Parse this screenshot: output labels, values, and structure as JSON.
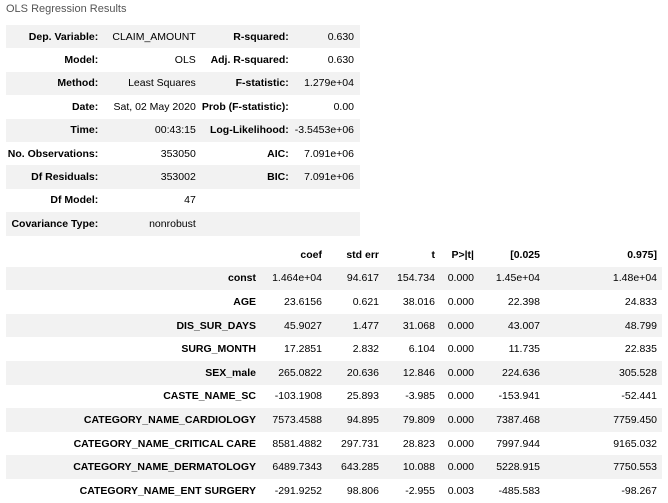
{
  "caption": "OLS Regression Results",
  "summary": {
    "rows": [
      {
        "l1": "Dep. Variable:",
        "v1": "CLAIM_AMOUNT",
        "l2": "R-squared:",
        "v2": "0.630"
      },
      {
        "l1": "Model:",
        "v1": "OLS",
        "l2": "Adj. R-squared:",
        "v2": "0.630"
      },
      {
        "l1": "Method:",
        "v1": "Least Squares",
        "l2": "F-statistic:",
        "v2": "1.279e+04"
      },
      {
        "l1": "Date:",
        "v1": "Sat, 02 May 2020",
        "l2": "Prob (F-statistic):",
        "v2": "0.00"
      },
      {
        "l1": "Time:",
        "v1": "00:43:15",
        "l2": "Log-Likelihood:",
        "v2": "-3.5453e+06"
      },
      {
        "l1": "No. Observations:",
        "v1": "353050",
        "l2": "AIC:",
        "v2": "7.091e+06"
      },
      {
        "l1": "Df Residuals:",
        "v1": "353002",
        "l2": "BIC:",
        "v2": "7.091e+06"
      },
      {
        "l1": "Df Model:",
        "v1": "47",
        "l2": "",
        "v2": ""
      },
      {
        "l1": "Covariance Type:",
        "v1": "nonrobust",
        "l2": "",
        "v2": ""
      }
    ]
  },
  "coef": {
    "headers": [
      "",
      "coef",
      "std err",
      "t",
      "P>|t|",
      "[0.025",
      "0.975]"
    ],
    "rows": [
      [
        "const",
        "1.464e+04",
        "94.617",
        "154.734",
        "0.000",
        "1.45e+04",
        "1.48e+04"
      ],
      [
        "AGE",
        "23.6156",
        "0.621",
        "38.016",
        "0.000",
        "22.398",
        "24.833"
      ],
      [
        "DIS_SUR_DAYS",
        "45.9027",
        "1.477",
        "31.068",
        "0.000",
        "43.007",
        "48.799"
      ],
      [
        "SURG_MONTH",
        "17.2851",
        "2.832",
        "6.104",
        "0.000",
        "11.735",
        "22.835"
      ],
      [
        "SEX_male",
        "265.0822",
        "20.636",
        "12.846",
        "0.000",
        "224.636",
        "305.528"
      ],
      [
        "CASTE_NAME_SC",
        "-103.1908",
        "25.893",
        "-3.985",
        "0.000",
        "-153.941",
        "-52.441"
      ],
      [
        "CATEGORY_NAME_CARDIOLOGY",
        "7573.4588",
        "94.895",
        "79.809",
        "0.000",
        "7387.468",
        "7759.450"
      ],
      [
        "CATEGORY_NAME_CRITICAL CARE",
        "8581.4882",
        "297.731",
        "28.823",
        "0.000",
        "7997.944",
        "9165.032"
      ],
      [
        "CATEGORY_NAME_DERMATOLOGY",
        "6489.7343",
        "643.285",
        "10.088",
        "0.000",
        "5228.915",
        "7750.553"
      ],
      [
        "CATEGORY_NAME_ENT SURGERY",
        "-291.9252",
        "98.806",
        "-2.955",
        "0.003",
        "-485.583",
        "-98.267"
      ]
    ]
  }
}
